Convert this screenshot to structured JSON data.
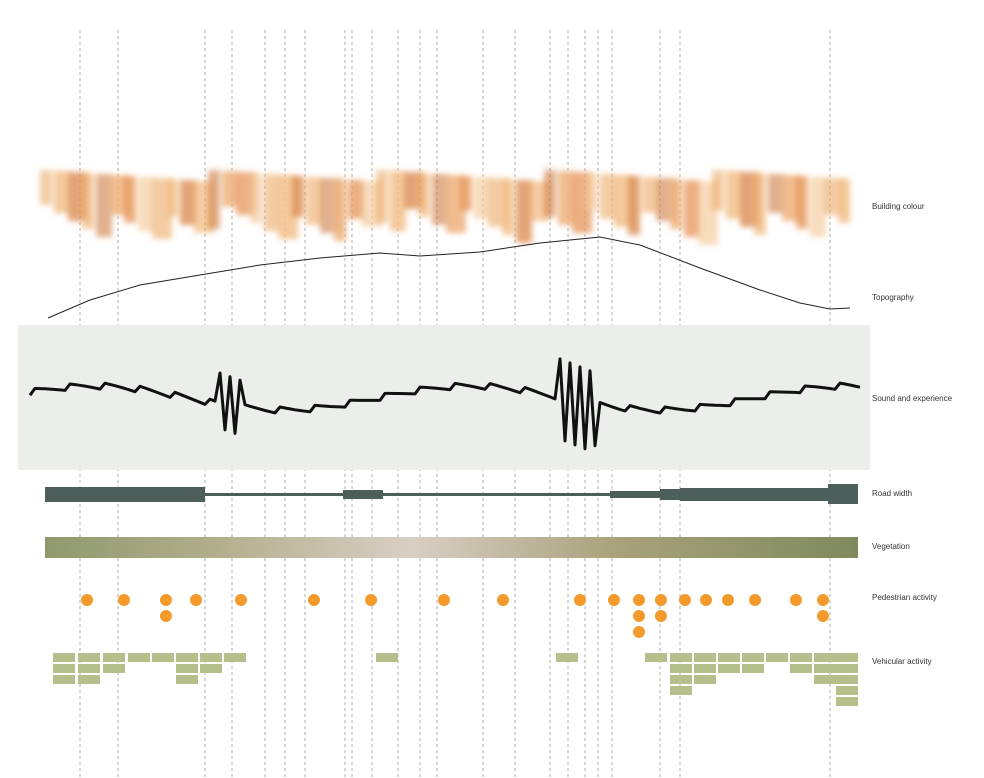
{
  "rows": {
    "building_colour": "Building colour",
    "topography": "Topography",
    "sound": "Sound and experience",
    "road_width": "Road width",
    "vegetation": "Vegetation",
    "pedestrian": "Pedestrian activity",
    "vehicular": "Vehicular activity"
  }
}
